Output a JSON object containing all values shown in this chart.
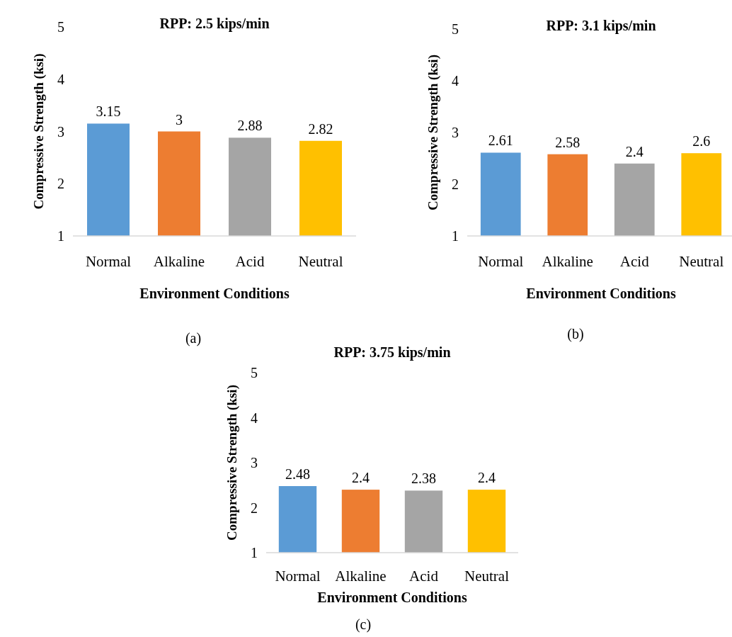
{
  "chart_data": [
    {
      "type": "bar",
      "title": "RPP: 2.5 kips/min",
      "xlabel": "Environment Conditions",
      "ylabel": "Compressive Strength (ksi)",
      "categories": [
        "Normal",
        "Alkaline",
        "Acid",
        "Neutral"
      ],
      "values": [
        3.15,
        3,
        2.88,
        2.82
      ],
      "colors": [
        "#5b9bd5",
        "#ed7d31",
        "#a5a5a5",
        "#ffc000"
      ],
      "ylim": [
        1,
        5
      ],
      "yticks": [
        1,
        2,
        3,
        4,
        5
      ],
      "data_labels": true,
      "annotations": [
        "(a)"
      ]
    },
    {
      "type": "bar",
      "title": "RPP: 3.1 kips/min",
      "xlabel": "Environment Conditions",
      "ylabel": "Compressive Strength (ksi)",
      "categories": [
        "Normal",
        "Alkaline",
        "Acid",
        "Neutral"
      ],
      "values": [
        2.61,
        2.58,
        2.4,
        2.6
      ],
      "colors": [
        "#5b9bd5",
        "#ed7d31",
        "#a5a5a5",
        "#ffc000"
      ],
      "ylim": [
        1,
        5
      ],
      "yticks": [
        1,
        2,
        3,
        4,
        5
      ],
      "data_labels": true,
      "annotations": [
        "(b)"
      ]
    },
    {
      "type": "bar",
      "title": "RPP: 3.75 kips/min",
      "xlabel": "Environment Conditions",
      "ylabel": "Compressive Strength (ksi)",
      "categories": [
        "Normal",
        "Alkaline",
        "Acid",
        "Neutral"
      ],
      "values": [
        2.48,
        2.4,
        2.38,
        2.4
      ],
      "colors": [
        "#5b9bd5",
        "#ed7d31",
        "#a5a5a5",
        "#ffc000"
      ],
      "ylim": [
        1,
        5
      ],
      "yticks": [
        1,
        2,
        3,
        4,
        5
      ],
      "data_labels": true,
      "annotations": [
        "(c)"
      ]
    }
  ]
}
